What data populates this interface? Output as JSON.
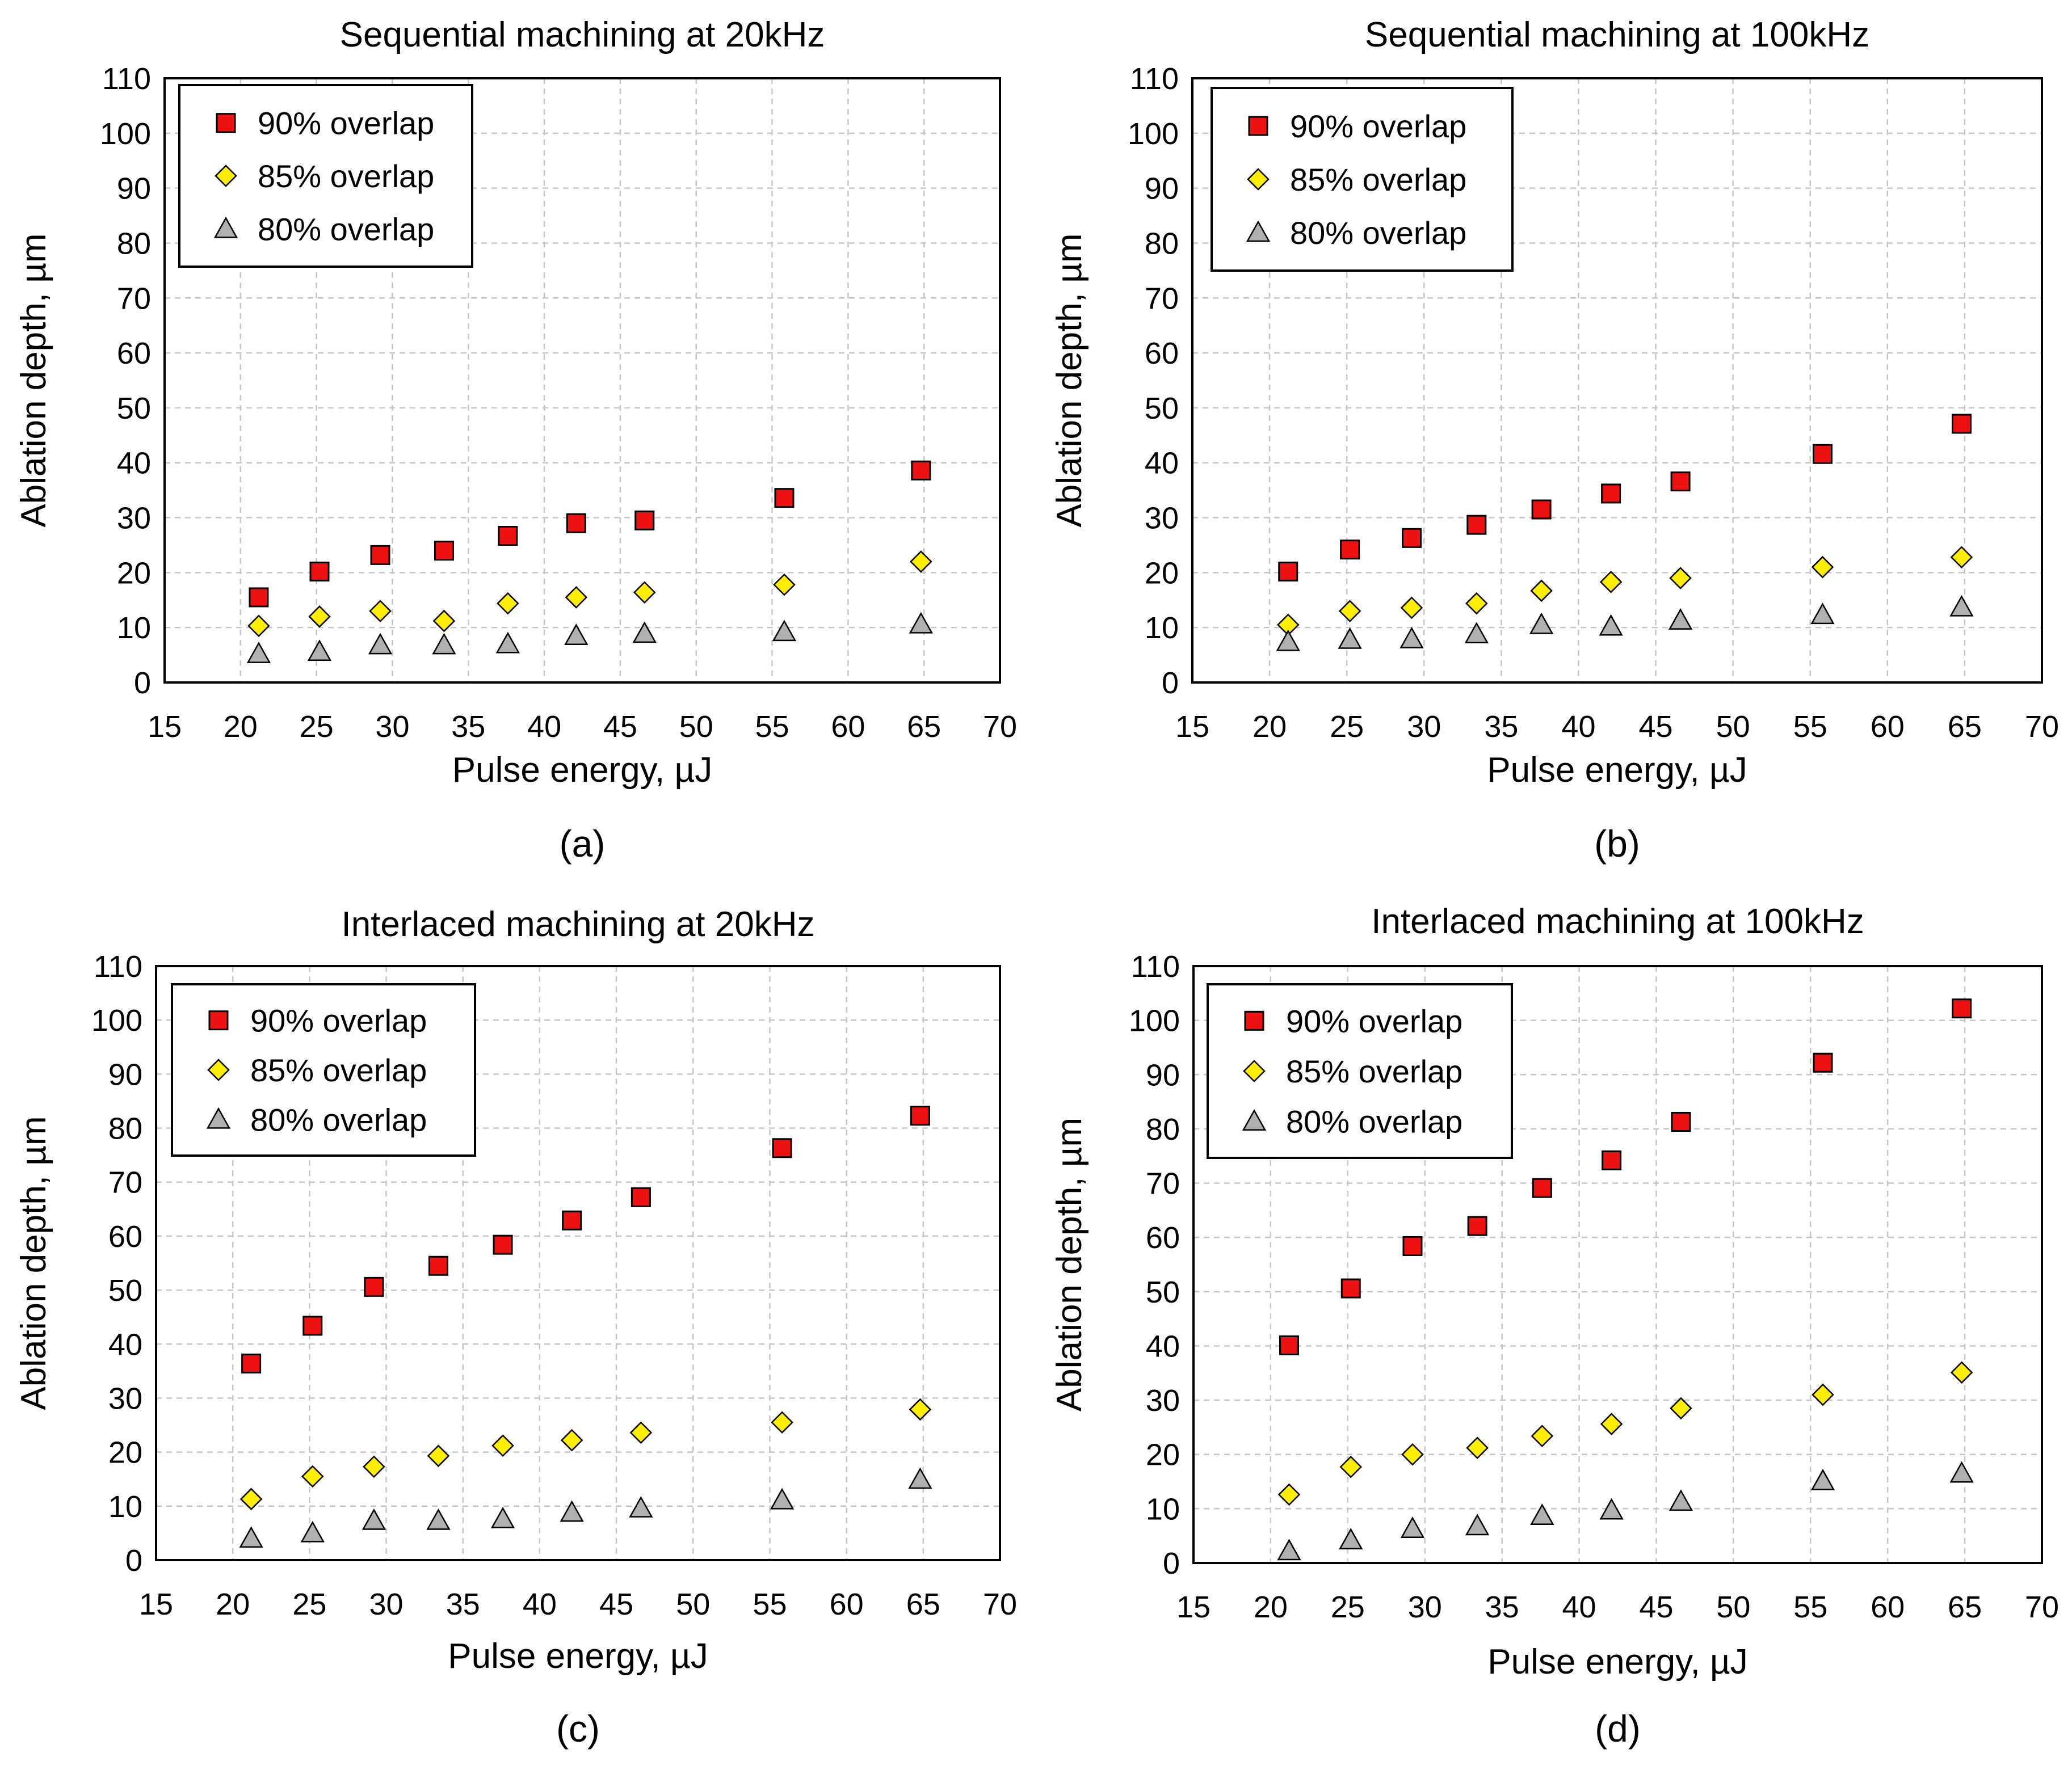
{
  "chart_data": [
    {
      "type": "scatter",
      "title": "Sequential machining at 20kHz",
      "xlabel": "Pulse energy, µJ",
      "ylabel": "Ablation depth, µm",
      "caption": "(a)",
      "xlim": [
        15,
        70
      ],
      "ylim": [
        0,
        110
      ],
      "xticks": [
        "15",
        "20",
        "25",
        "30",
        "35",
        "40",
        "45",
        "50",
        "55",
        "60",
        "65",
        "70"
      ],
      "yticks": [
        "0",
        "10",
        "20",
        "30",
        "40",
        "50",
        "60",
        "70",
        "80",
        "90",
        "100",
        "110"
      ],
      "x": [
        21.2,
        25.2,
        29.2,
        33.4,
        37.6,
        42.1,
        46.6,
        55.8,
        64.8
      ],
      "series": [
        {
          "name": "90% overlap",
          "marker": "square",
          "color": "#ee1111",
          "values": [
            15.5,
            20.2,
            23.2,
            24.0,
            26.7,
            29.0,
            29.5,
            33.6,
            38.6
          ]
        },
        {
          "name": "85% overlap",
          "marker": "diamond",
          "color": "#ffee00",
          "values": [
            10.3,
            12.0,
            13.0,
            11.2,
            14.4,
            15.5,
            16.4,
            17.8,
            22.0
          ]
        },
        {
          "name": "80% overlap",
          "marker": "triangle",
          "color": "#b0b0b0",
          "values": [
            5.2,
            5.6,
            6.8,
            6.8,
            7.0,
            8.5,
            8.9,
            9.2,
            10.6
          ]
        }
      ]
    },
    {
      "type": "scatter",
      "title": "Sequential machining at 100kHz",
      "xlabel": "Pulse energy, µJ",
      "ylabel": "Ablation depth, µm",
      "caption": "(b)",
      "xlim": [
        15,
        70
      ],
      "ylim": [
        0,
        110
      ],
      "xticks": [
        "15",
        "20",
        "25",
        "30",
        "35",
        "40",
        "45",
        "50",
        "55",
        "60",
        "65",
        "70"
      ],
      "yticks": [
        "0",
        "10",
        "20",
        "30",
        "40",
        "50",
        "60",
        "70",
        "80",
        "90",
        "100",
        "110"
      ],
      "x": [
        21.2,
        25.2,
        29.2,
        33.4,
        37.6,
        42.1,
        46.6,
        55.8,
        64.8
      ],
      "series": [
        {
          "name": "90% overlap",
          "marker": "square",
          "color": "#ee1111",
          "values": [
            20.2,
            24.2,
            26.3,
            28.7,
            31.5,
            34.4,
            36.6,
            41.6,
            47.1
          ]
        },
        {
          "name": "85% overlap",
          "marker": "diamond",
          "color": "#ffee00",
          "values": [
            10.5,
            13.0,
            13.6,
            14.4,
            16.7,
            18.3,
            19.0,
            21.0,
            22.8
          ]
        },
        {
          "name": "80% overlap",
          "marker": "triangle",
          "color": "#b0b0b0",
          "values": [
            7.4,
            7.8,
            7.9,
            8.8,
            10.5,
            10.2,
            11.3,
            12.3,
            13.7
          ]
        }
      ]
    },
    {
      "type": "scatter",
      "title": "Interlaced machining at 20kHz",
      "xlabel": "Pulse energy, µJ",
      "ylabel": "Ablation depth, µm",
      "caption": "(c)",
      "xlim": [
        15,
        70
      ],
      "ylim": [
        0,
        110
      ],
      "xticks": [
        "15",
        "20",
        "25",
        "30",
        "35",
        "40",
        "45",
        "50",
        "55",
        "60",
        "65",
        "70"
      ],
      "yticks": [
        "0",
        "10",
        "20",
        "30",
        "40",
        "50",
        "60",
        "70",
        "80",
        "90",
        "100",
        "110"
      ],
      "x": [
        21.2,
        25.2,
        29.2,
        33.4,
        37.6,
        42.1,
        46.6,
        55.8,
        64.8
      ],
      "series": [
        {
          "name": "90% overlap",
          "marker": "square",
          "color": "#ee1111",
          "values": [
            36.4,
            43.4,
            50.6,
            54.5,
            58.4,
            62.9,
            67.2,
            76.3,
            82.3
          ]
        },
        {
          "name": "85% overlap",
          "marker": "diamond",
          "color": "#ffee00",
          "values": [
            11.3,
            15.5,
            17.3,
            19.3,
            21.2,
            22.2,
            23.6,
            25.5,
            27.9
          ]
        },
        {
          "name": "80% overlap",
          "marker": "triangle",
          "color": "#b0b0b0",
          "values": [
            4.0,
            5.0,
            7.3,
            7.3,
            7.6,
            8.8,
            9.6,
            11.1,
            14.9
          ]
        }
      ]
    },
    {
      "type": "scatter",
      "title": "Interlaced machining at 100kHz",
      "xlabel": "Pulse energy, µJ",
      "ylabel": "Ablation depth, µm",
      "caption": "(d)",
      "xlim": [
        15,
        70
      ],
      "ylim": [
        0,
        110
      ],
      "xticks": [
        "15",
        "20",
        "25",
        "30",
        "35",
        "40",
        "45",
        "50",
        "55",
        "60",
        "65",
        "70"
      ],
      "yticks": [
        "0",
        "10",
        "20",
        "30",
        "40",
        "50",
        "60",
        "70",
        "80",
        "90",
        "100",
        "110"
      ],
      "x": [
        21.2,
        25.2,
        29.2,
        33.4,
        37.6,
        42.1,
        46.6,
        55.8,
        64.8
      ],
      "series": [
        {
          "name": "90% overlap",
          "marker": "square",
          "color": "#ee1111",
          "values": [
            40.1,
            50.6,
            58.4,
            62.1,
            69.1,
            74.2,
            81.3,
            92.2,
            102.2
          ]
        },
        {
          "name": "85% overlap",
          "marker": "diamond",
          "color": "#ffee00",
          "values": [
            12.6,
            17.7,
            20.0,
            21.2,
            23.4,
            25.6,
            28.5,
            31.0,
            35.1
          ]
        },
        {
          "name": "80% overlap",
          "marker": "triangle",
          "color": "#b0b0b0",
          "values": [
            2.2,
            4.2,
            6.3,
            6.8,
            8.7,
            9.7,
            11.3,
            15.1,
            16.5
          ]
        }
      ]
    }
  ]
}
